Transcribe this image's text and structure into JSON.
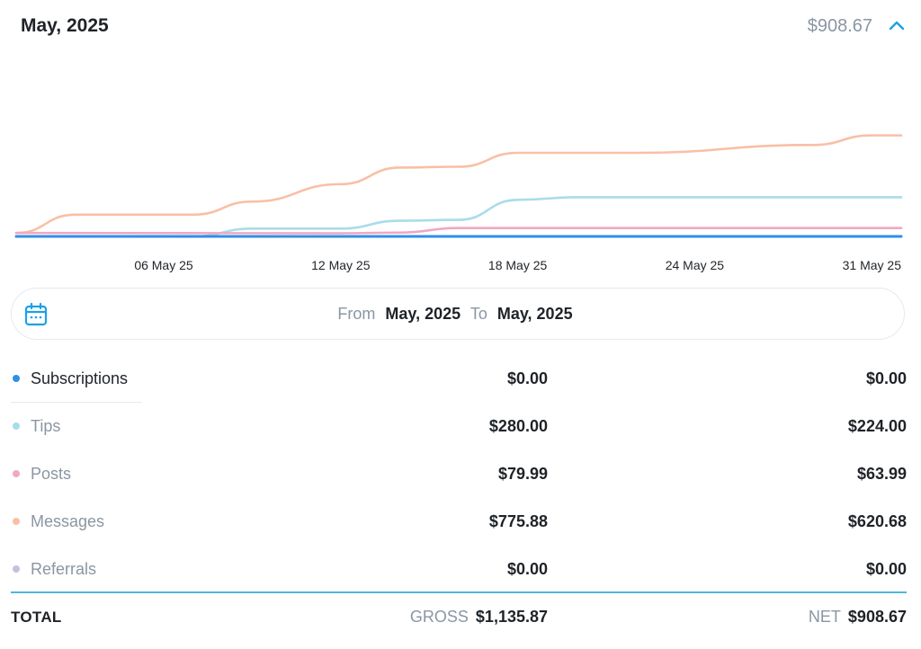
{
  "header": {
    "period": "May, 2025",
    "total": "$908.67",
    "collapse_icon": "chevron-up-icon"
  },
  "colors": {
    "subscriptions": "#2f8fe6",
    "tips": "#a9dcea",
    "posts": "#f1a7c2",
    "messages": "#f9bfa5",
    "referrals": "#c7bfe0",
    "accent": "#1da1e6",
    "muted": "#8a96a3"
  },
  "chart_data": {
    "type": "line",
    "x_labels": [
      "06 May 25",
      "12 May 25",
      "18 May 25",
      "24 May 25",
      "31 May 25"
    ],
    "grid": false,
    "legend": "none",
    "ylim": [
      0,
      800
    ],
    "series": [
      {
        "name": "Subscriptions",
        "color": "#2f8fe6",
        "points": [
          [
            "01 May 25",
            0
          ],
          [
            "31 May 25",
            0
          ]
        ]
      },
      {
        "name": "Tips",
        "color": "#a9dcea",
        "points": [
          [
            "01 May 25",
            0
          ],
          [
            "07 May 25",
            0
          ],
          [
            "09 May 25",
            45
          ],
          [
            "12 May 25",
            45
          ],
          [
            "14 May 25",
            90
          ],
          [
            "16 May 25",
            95
          ],
          [
            "18 May 25",
            210
          ],
          [
            "20 May 25",
            225
          ],
          [
            "31 May 25",
            225
          ]
        ]
      },
      {
        "name": "Posts",
        "color": "#f1a7c2",
        "points": [
          [
            "01 May 25",
            20
          ],
          [
            "12 May 25",
            18
          ],
          [
            "14 May 25",
            22
          ],
          [
            "16 May 25",
            48
          ],
          [
            "18 May 25",
            48
          ],
          [
            "31 May 25",
            48
          ]
        ]
      },
      {
        "name": "Messages",
        "color": "#f9bfa5",
        "points": [
          [
            "01 May 25",
            20
          ],
          [
            "03 May 25",
            125
          ],
          [
            "07 May 25",
            125
          ],
          [
            "09 May 25",
            200
          ],
          [
            "12 May 25",
            300
          ],
          [
            "14 May 25",
            395
          ],
          [
            "16 May 25",
            400
          ],
          [
            "18 May 25",
            480
          ],
          [
            "22 May 25",
            480
          ],
          [
            "28 May 25",
            525
          ],
          [
            "30 May 25",
            580
          ],
          [
            "31 May 25",
            580
          ]
        ]
      },
      {
        "name": "Referrals",
        "color": "#c7bfe0",
        "points": [
          [
            "01 May 25",
            0
          ],
          [
            "31 May 25",
            0
          ]
        ]
      }
    ]
  },
  "range": {
    "calendar_icon": "calendar-icon",
    "from_label": "From",
    "from_value": "May, 2025",
    "to_label": "To",
    "to_value": "May, 2025"
  },
  "rows": [
    {
      "label": "Subscriptions",
      "gross": "$0.00",
      "net": "$0.00"
    },
    {
      "label": "Tips",
      "gross": "$280.00",
      "net": "$224.00"
    },
    {
      "label": "Posts",
      "gross": "$79.99",
      "net": "$63.99"
    },
    {
      "label": "Messages",
      "gross": "$775.88",
      "net": "$620.68"
    },
    {
      "label": "Referrals",
      "gross": "$0.00",
      "net": "$0.00"
    }
  ],
  "total": {
    "label": "TOTAL",
    "gross_tag": "GROSS",
    "gross": "$1,135.87",
    "net_tag": "NET",
    "net": "$908.67"
  }
}
